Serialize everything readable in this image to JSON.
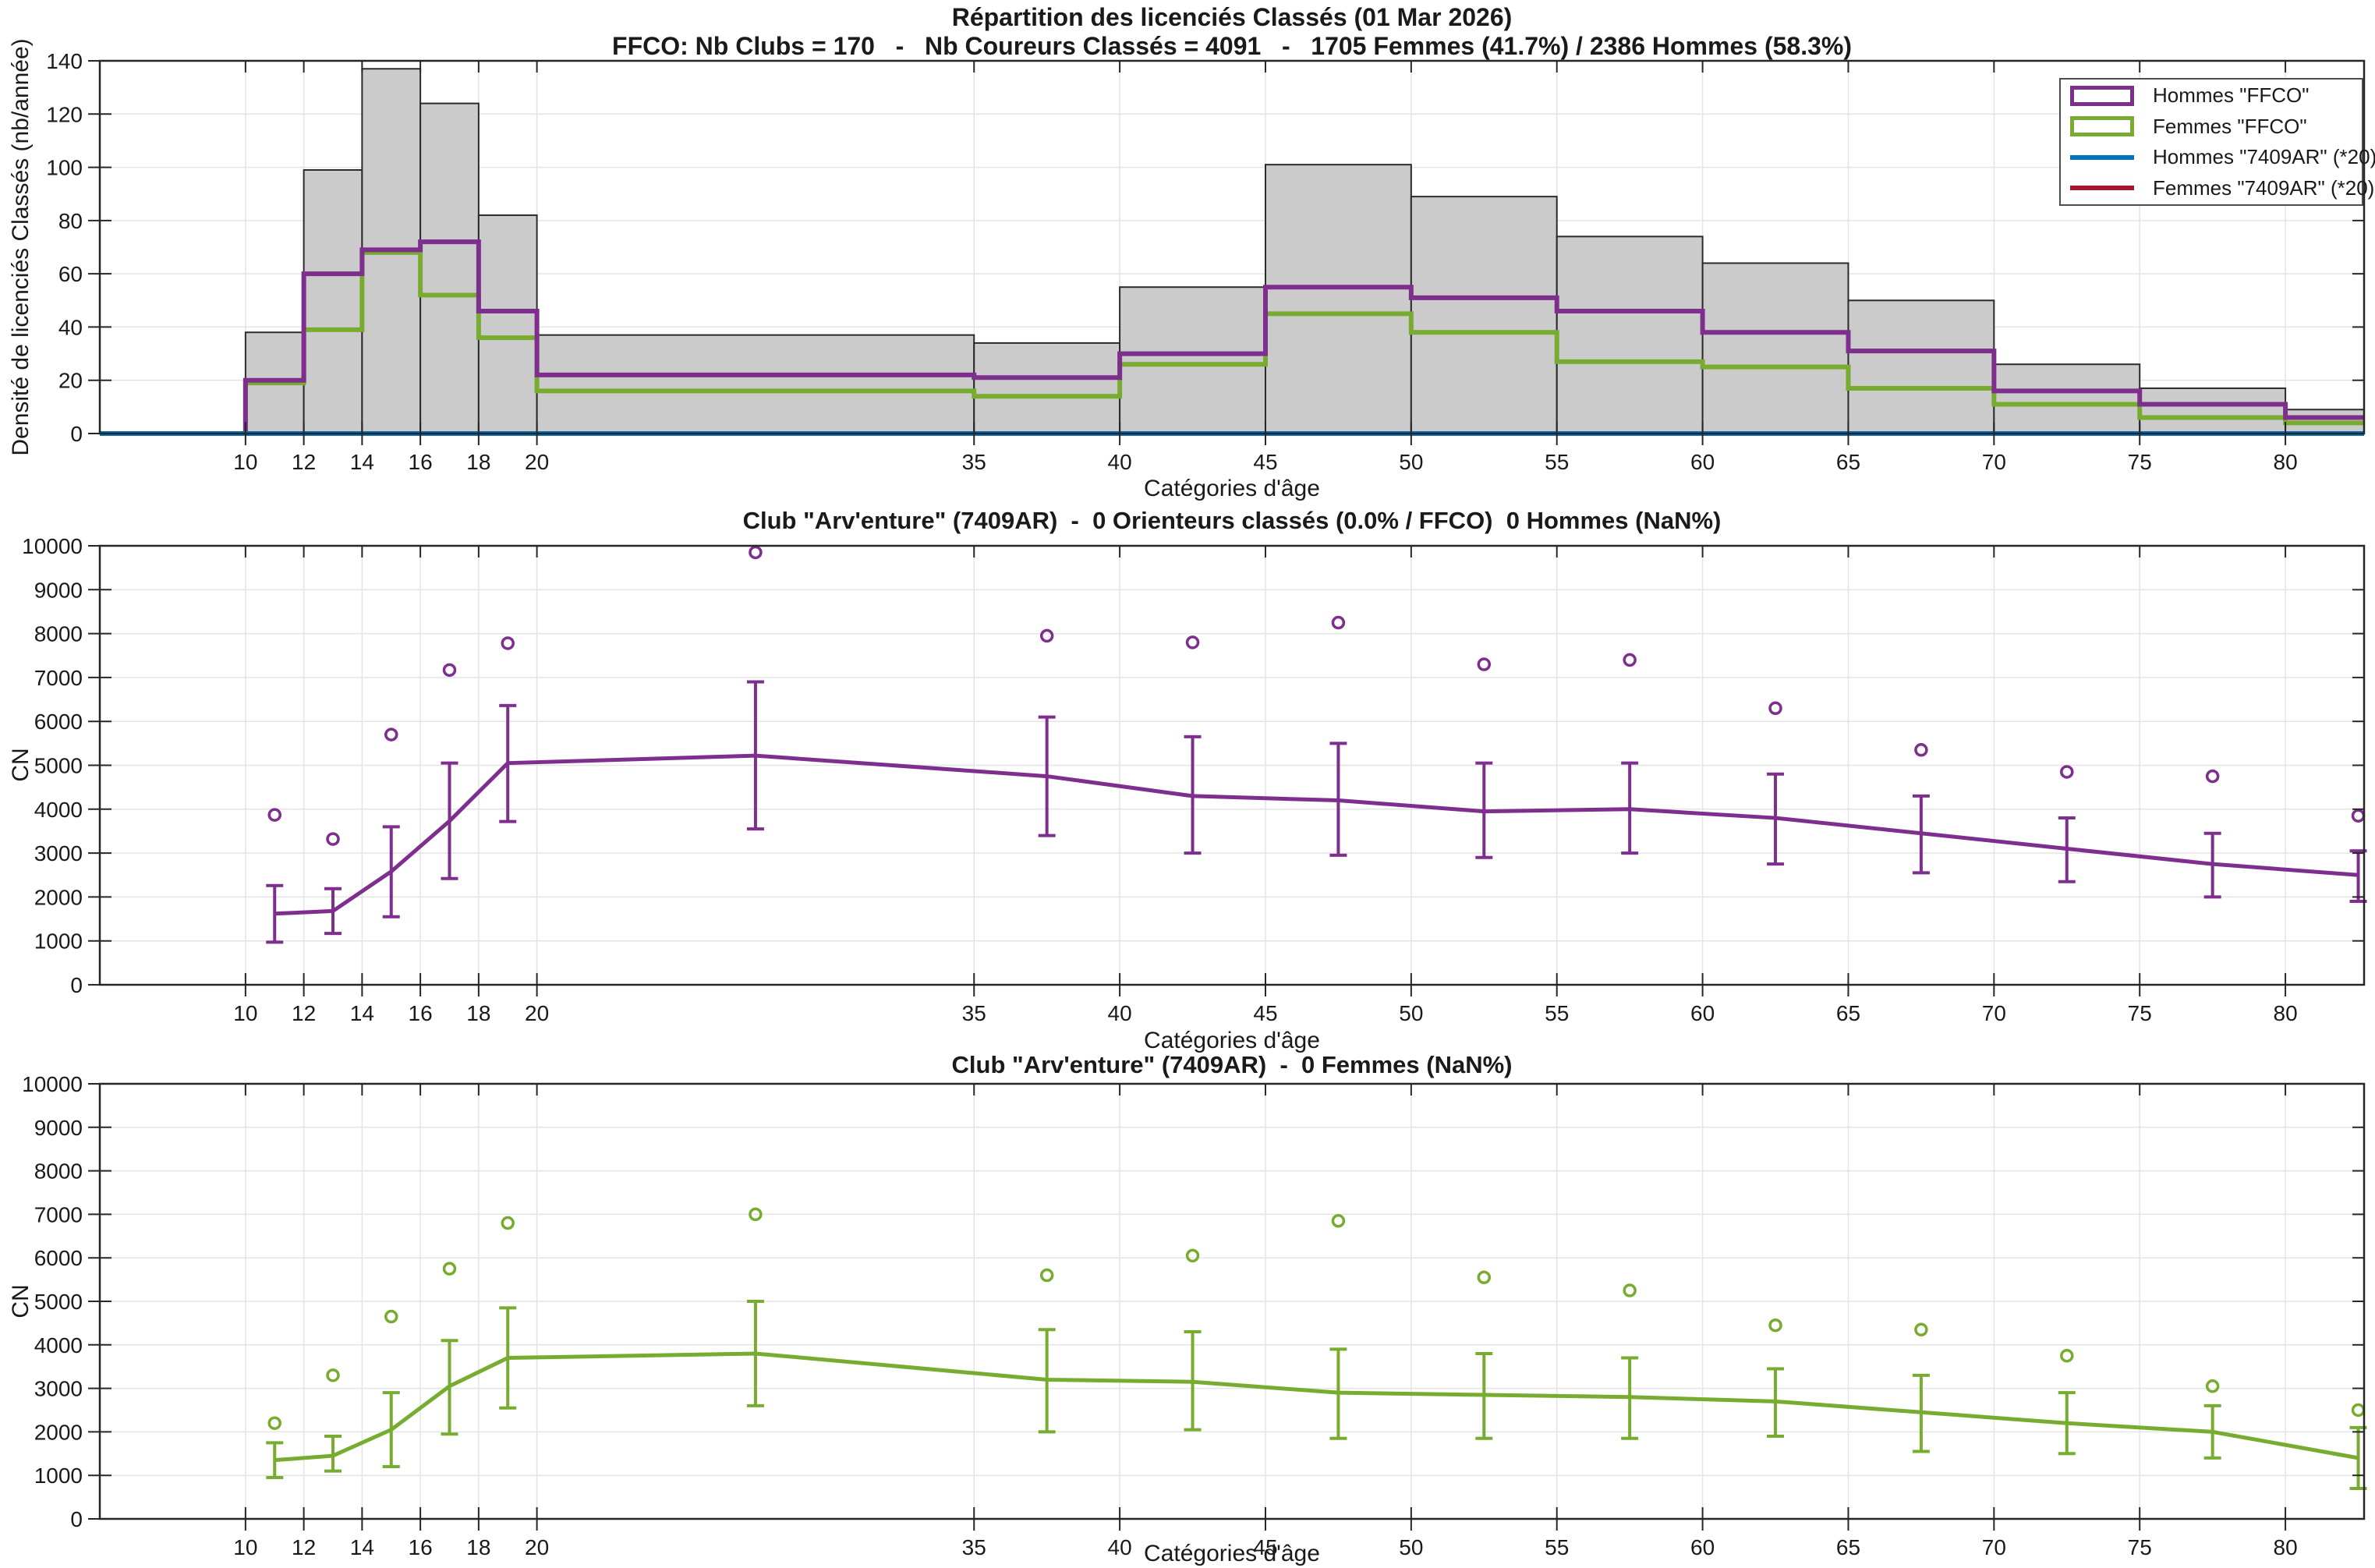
{
  "figure": {
    "background": "#ffffff",
    "axis_color": "#262626",
    "grid_color": "#e4e4e4",
    "bar_edge_color": "#2b2b2b"
  },
  "legend": {
    "entries": [
      {
        "label": "Hommes \"FFCO\"",
        "color": "#7E2F8E",
        "swatch": "box"
      },
      {
        "label": "Femmes \"FFCO\"",
        "color": "#77AC30",
        "swatch": "box"
      },
      {
        "label": "Hommes \"7409AR\" (*20)",
        "color": "#0072BD",
        "swatch": "line"
      },
      {
        "label": "Femmes \"7409AR\" (*20)",
        "color": "#A2142F",
        "swatch": "line"
      }
    ]
  },
  "chart_data": [
    {
      "type": "bar",
      "title_lines": [
        "Répartition des licenciés Classés (01 Mar 2026)",
        "FFCO: Nb Clubs = 170   -   Nb Coureurs Classés = 4091   -   1705 Femmes (41.7%) / 2386 Hommes (58.3%)"
      ],
      "xlabel": "Catégories d'âge",
      "ylabel": "Densité de licenciés Classés (nb/année)",
      "xlim": [
        5,
        82.7
      ],
      "ylim": [
        0,
        140
      ],
      "xticks": [
        10,
        12,
        14,
        16,
        18,
        20,
        35,
        40,
        45,
        50,
        55,
        60,
        65,
        70,
        75,
        80
      ],
      "yticks": [
        0,
        20,
        40,
        60,
        80,
        100,
        120,
        140
      ],
      "grid": "on",
      "legend_position": "top-right",
      "bin_edges": [
        10,
        12,
        14,
        16,
        18,
        20,
        35,
        40,
        45,
        50,
        55,
        60,
        65,
        70,
        75,
        80,
        82.7
      ],
      "bar_fill": "#CBCBCB",
      "bars_total_density": [
        38,
        99,
        137,
        124,
        82,
        37,
        34,
        55,
        101,
        89,
        74,
        64,
        50,
        26,
        17,
        9
      ],
      "series": [
        {
          "name": "Hommes \"FFCO\"",
          "type": "step",
          "color": "#7E2F8E",
          "values": [
            20,
            60,
            69,
            72,
            46,
            22,
            21,
            30,
            55,
            51,
            46,
            38,
            31,
            16,
            11,
            6
          ]
        },
        {
          "name": "Femmes \"FFCO\"",
          "type": "step",
          "color": "#77AC30",
          "values": [
            19,
            39,
            68,
            52,
            36,
            16,
            14,
            26,
            45,
            38,
            27,
            25,
            17,
            11,
            6,
            4
          ]
        },
        {
          "name": "Hommes \"7409AR\" (*20)",
          "type": "flatline",
          "color": "#0072BD",
          "value": 0
        },
        {
          "name": "Femmes \"7409AR\" (*20)",
          "type": "flatline",
          "color": "#A2142F",
          "value": 0
        }
      ]
    },
    {
      "type": "line",
      "title": "Club \"Arv'enture\" (7409AR)  -  0 Orienteurs classés (0.0% / FFCO)  0 Hommes (NaN%)",
      "xlabel": "Catégories d'âge",
      "ylabel": "CN",
      "color": "#7E2F8E",
      "xlim": [
        5,
        82.7
      ],
      "ylim": [
        0,
        10000
      ],
      "xticks": [
        10,
        12,
        14,
        16,
        18,
        20,
        35,
        40,
        45,
        50,
        55,
        60,
        65,
        70,
        75,
        80
      ],
      "yticks": [
        0,
        1000,
        2000,
        3000,
        4000,
        5000,
        6000,
        7000,
        8000,
        9000,
        10000
      ],
      "grid": "on",
      "x": [
        11,
        13,
        15,
        17,
        19,
        27.5,
        37.5,
        42.5,
        47.5,
        52.5,
        57.5,
        62.5,
        67.5,
        72.5,
        77.5,
        82.5
      ],
      "mean": [
        1620,
        1680,
        2580,
        3730,
        5050,
        5220,
        4750,
        4300,
        4200,
        3950,
        4000,
        3800,
        3450,
        3100,
        2750,
        2500
      ],
      "err_low": [
        970,
        1170,
        1550,
        2420,
        3720,
        3550,
        3400,
        3000,
        2950,
        2900,
        3000,
        2750,
        2550,
        2350,
        2000,
        1900
      ],
      "err_high": [
        2260,
        2190,
        3600,
        5050,
        6360,
        6900,
        6100,
        5650,
        5500,
        5050,
        5050,
        4800,
        4300,
        3800,
        3450,
        3050
      ],
      "outlier_max": [
        3870,
        3320,
        5700,
        7170,
        7780,
        9850,
        7950,
        7800,
        8250,
        7300,
        7400,
        6300,
        5350,
        4850,
        4750,
        3850
      ]
    },
    {
      "type": "line",
      "title": "Club \"Arv'enture\" (7409AR)  -  0 Femmes (NaN%)",
      "xlabel": "Catégories d'âge",
      "ylabel": "CN",
      "color": "#77AC30",
      "xlim": [
        5,
        82.7
      ],
      "ylim": [
        0,
        10000
      ],
      "xticks": [
        10,
        12,
        14,
        16,
        18,
        20,
        35,
        40,
        45,
        50,
        55,
        60,
        65,
        70,
        75,
        80
      ],
      "yticks": [
        0,
        1000,
        2000,
        3000,
        4000,
        5000,
        6000,
        7000,
        8000,
        9000,
        10000
      ],
      "grid": "on",
      "x": [
        11,
        13,
        15,
        17,
        19,
        27.5,
        37.5,
        42.5,
        47.5,
        52.5,
        57.5,
        62.5,
        67.5,
        72.5,
        77.5,
        82.5
      ],
      "mean": [
        1350,
        1450,
        2050,
        3050,
        3700,
        3800,
        3200,
        3150,
        2900,
        2850,
        2800,
        2700,
        2450,
        2200,
        2000,
        1400
      ],
      "err_low": [
        950,
        1100,
        1200,
        1950,
        2550,
        2600,
        2000,
        2050,
        1850,
        1850,
        1850,
        1900,
        1550,
        1500,
        1400,
        700
      ],
      "err_high": [
        1750,
        1900,
        2900,
        4100,
        4850,
        5000,
        4350,
        4300,
        3900,
        3800,
        3700,
        3450,
        3300,
        2900,
        2600,
        2100
      ],
      "outlier_max": [
        2200,
        3300,
        4650,
        5750,
        6800,
        7000,
        5600,
        6050,
        6850,
        5550,
        5250,
        4450,
        4350,
        3750,
        3050,
        2500
      ]
    }
  ]
}
